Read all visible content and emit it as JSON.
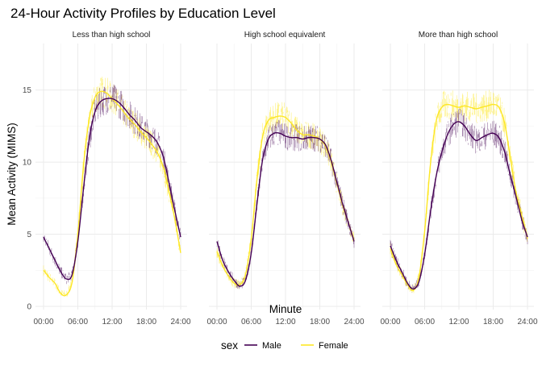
{
  "chart_data": {
    "type": "line",
    "title": "24-Hour Activity Profiles by Education Level",
    "xlabel": "Minute",
    "ylabel": "Mean Activity (MIMS)",
    "xlim": [
      0,
      1440
    ],
    "ylim": [
      0,
      18
    ],
    "x_ticks": [
      0,
      360,
      720,
      1080,
      1440
    ],
    "x_tick_labels": [
      "00:00",
      "06:00",
      "12:00",
      "18:00",
      "24:00"
    ],
    "y_ticks": [
      0,
      5,
      10,
      15
    ],
    "y_tick_labels": [
      "0",
      "5",
      "10",
      "15"
    ],
    "grid": true,
    "legend": {
      "title": "sex",
      "position": "bottom",
      "entries": [
        {
          "label": "Male",
          "color": "#440154"
        },
        {
          "label": "Female",
          "color": "#FDE725"
        }
      ]
    },
    "colors": {
      "Male": "#440154",
      "Female": "#FDE725",
      "grid": "#EBEBEB"
    },
    "x_hours": [
      0,
      1,
      2,
      3,
      4,
      5,
      6,
      7,
      8,
      9,
      10,
      11,
      12,
      13,
      14,
      15,
      16,
      17,
      18,
      19,
      20,
      21,
      22,
      23,
      24
    ],
    "facets": [
      {
        "label": "Less than high school",
        "series": [
          {
            "name": "Male",
            "values": [
              4.8,
              4.0,
              3.2,
              2.4,
              1.9,
              2.2,
              4.5,
              8.2,
              11.6,
              13.5,
              14.2,
              14.4,
              14.4,
              14.2,
              13.8,
              13.3,
              12.9,
              12.4,
              12.1,
              11.8,
              11.3,
              10.3,
              8.5,
              6.6,
              4.8
            ]
          },
          {
            "name": "Female",
            "values": [
              2.5,
              2.0,
              1.6,
              0.9,
              0.8,
              1.7,
              5.0,
              9.8,
              13.0,
              14.5,
              14.9,
              14.8,
              14.4,
              14.0,
              13.5,
              13.0,
              12.6,
              12.1,
              11.7,
              11.2,
              10.6,
              9.6,
              7.9,
              6.0,
              3.7
            ]
          }
        ]
      },
      {
        "label": "High school equivalent",
        "series": [
          {
            "name": "Male",
            "values": [
              4.5,
              3.2,
              2.4,
              1.8,
              1.4,
              1.8,
              3.7,
              7.1,
              10.2,
              11.6,
              12.0,
              12.0,
              11.8,
              11.7,
              11.7,
              11.6,
              11.7,
              11.7,
              11.6,
              11.2,
              10.1,
              8.6,
              7.1,
              5.8,
              4.5
            ]
          },
          {
            "name": "Female",
            "values": [
              3.8,
              2.8,
              2.1,
              1.6,
              1.5,
              2.2,
              4.7,
              8.8,
              11.8,
              12.9,
              13.1,
              13.2,
              13.1,
              12.7,
              12.2,
              11.9,
              11.9,
              11.8,
              11.6,
              11.1,
              10.0,
              8.5,
              7.0,
              5.8,
              4.6
            ]
          }
        ]
      },
      {
        "label": "More than high school",
        "series": [
          {
            "name": "Male",
            "values": [
              4.2,
              3.2,
              2.4,
              1.6,
              1.2,
              1.7,
              3.6,
              6.5,
              9.0,
              10.7,
              11.9,
              12.6,
              12.8,
              12.5,
              11.9,
              11.5,
              11.7,
              11.9,
              12.0,
              11.7,
              10.7,
              9.1,
              7.6,
              6.0,
              4.8
            ]
          },
          {
            "name": "Female",
            "values": [
              4.0,
              2.9,
              2.2,
              1.5,
              1.1,
              2.0,
              5.2,
              9.8,
              12.8,
              13.8,
              14.0,
              13.9,
              13.8,
              13.9,
              13.8,
              13.7,
              13.8,
              13.9,
              14.0,
              13.8,
              12.7,
              10.3,
              7.9,
              6.3,
              4.7
            ]
          }
        ]
      }
    ]
  }
}
